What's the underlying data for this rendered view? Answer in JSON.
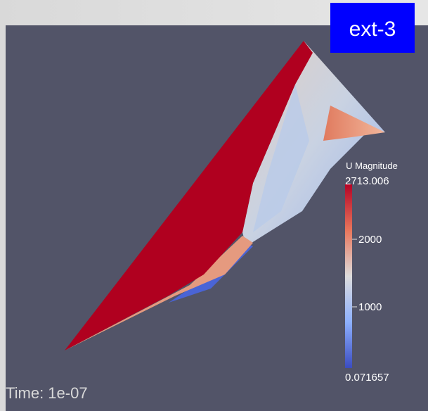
{
  "badge": "ext-3",
  "colorbar": {
    "title": "U Magnitude",
    "labels": [
      "2713.006",
      "2000",
      "1000",
      "0.071657"
    ]
  },
  "time": "Time: 1e-07"
}
